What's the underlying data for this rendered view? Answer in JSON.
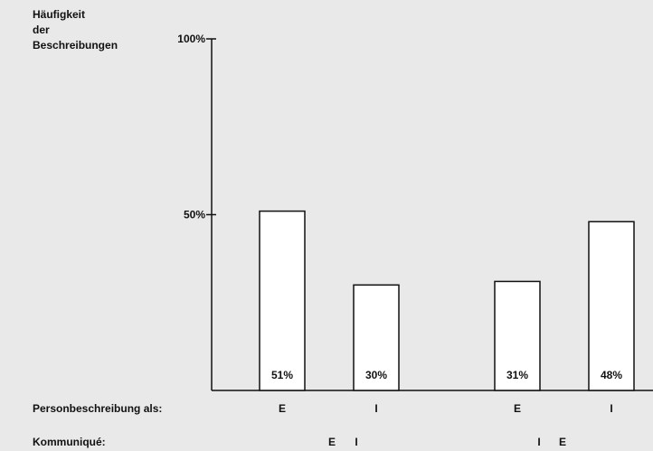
{
  "chart_data": {
    "type": "bar",
    "ylabel": [
      "Häufigkeit",
      "der",
      "Beschreibungen"
    ],
    "ylim": [
      0,
      100
    ],
    "yticks": [
      {
        "value": 100,
        "label": "100%"
      },
      {
        "value": 50,
        "label": "50%"
      }
    ],
    "categories": [
      "E",
      "I",
      "E",
      "I"
    ],
    "values": [
      51,
      30,
      31,
      48
    ],
    "value_labels": [
      "51%",
      "30%",
      "31%",
      "48%"
    ],
    "row_label_description": "Personbeschreibung als:",
    "row_label_communique": "Kommuniqué:",
    "communique_groups": [
      [
        "E",
        "I"
      ],
      [
        "I",
        "E"
      ]
    ],
    "grid": false,
    "legend": "none"
  }
}
